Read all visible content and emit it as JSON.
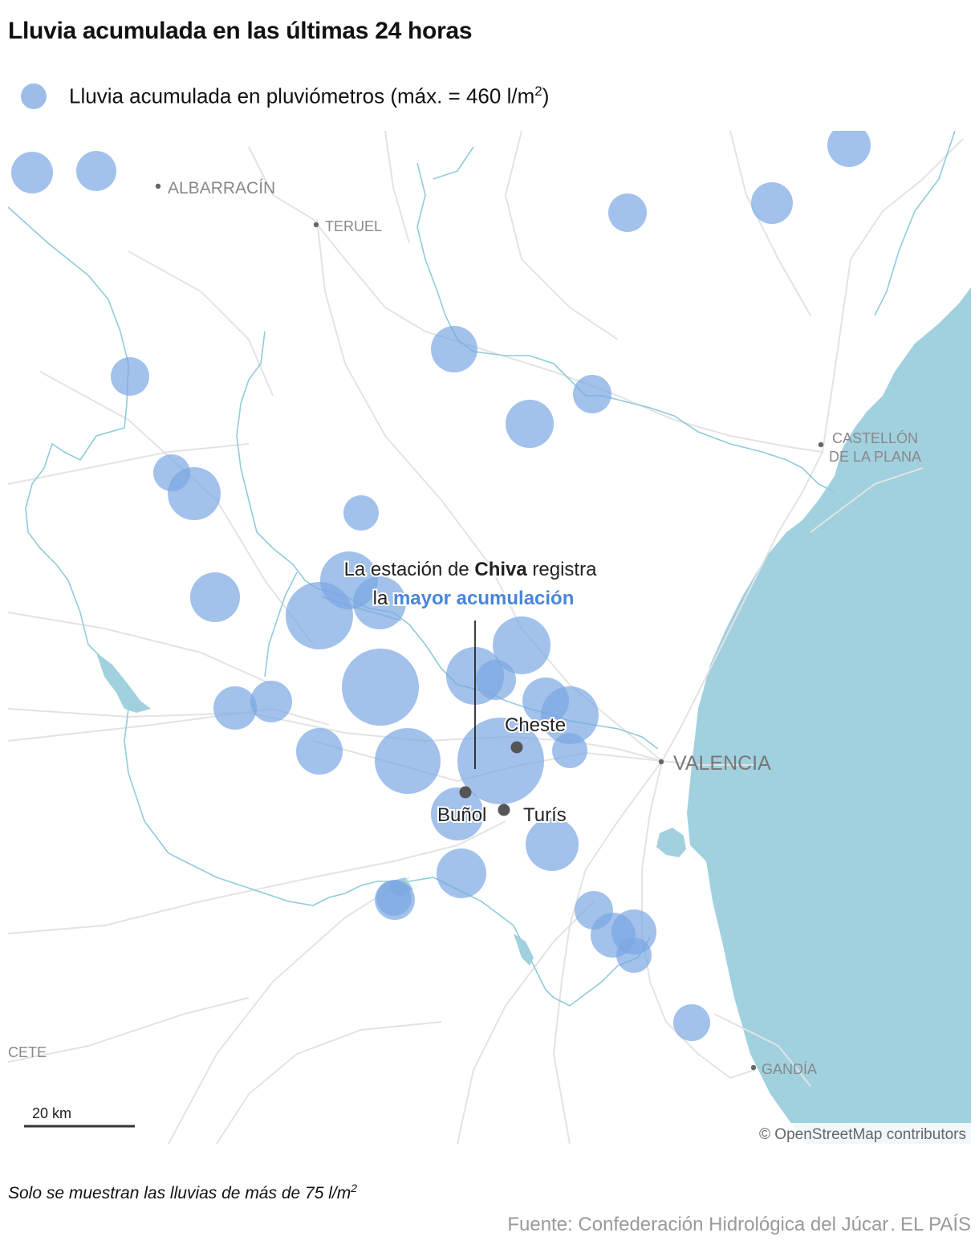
{
  "title": "Lluvia acumulada en las últimas 24 horas",
  "legend": {
    "label": "Lluvia acumulada en pluviómetros (máx. = 460 l/m",
    "sup": "2",
    "close": ")",
    "color": "#9dbce8"
  },
  "colors": {
    "sea": "#a1d1df",
    "river": "#8fcbdc",
    "road": "#e3e3e3",
    "bubble": "#7aa6e2",
    "highlight": "#4a86d8",
    "town_dot": "#555555"
  },
  "map": {
    "towns": {
      "albarracin": "ALBARRACÍN",
      "teruel": "TERUEL",
      "castellon_1": "CASTELLÓN",
      "castellon_2": "DE LA PLANA",
      "valencia": "VALENCIA",
      "gandia": "GANDÍA",
      "albacete": "CETE"
    },
    "places": {
      "cheste": "Cheste",
      "bunol": "Buñol",
      "turis": "Turís"
    },
    "annotation": {
      "line1_pre": "La estación de ",
      "line1_bold": "Chiva",
      "line1_post": " registra",
      "line2_pre": "la ",
      "line2_highlight": "mayor acumulación"
    },
    "scale_label": "20 km",
    "attribution": "© OpenStreetMap contributors"
  },
  "footnote": {
    "text": "Solo se muestran las lluvias de más de 75 l/m",
    "sup": "2"
  },
  "source": {
    "text": "Fuente: Confederación Hidrológica del Júcar",
    "separator": ".",
    "brand": "EL PAÍS"
  }
}
